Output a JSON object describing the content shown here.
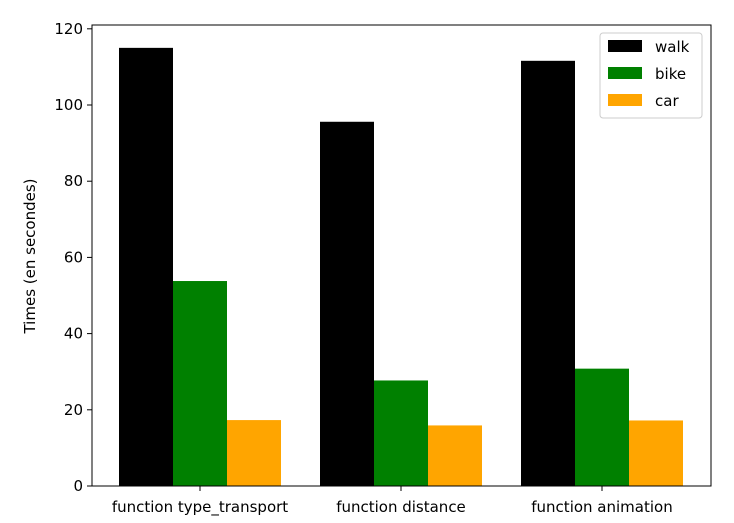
{
  "chart_data": {
    "type": "bar",
    "title": "",
    "xlabel": "",
    "ylabel": "Times (en secondes)",
    "categories": [
      "function type_transport",
      "function distance",
      "function animation"
    ],
    "series": [
      {
        "name": "walk",
        "color": "#000000",
        "values": [
          115,
          95.6,
          111.6
        ]
      },
      {
        "name": "bike",
        "color": "#008000",
        "values": [
          53.8,
          27.7,
          30.8
        ]
      },
      {
        "name": "car",
        "color": "#ffa500",
        "values": [
          17.3,
          15.9,
          17.2
        ]
      }
    ],
    "ylim": [
      0,
      121
    ],
    "yticks": [
      0,
      20,
      40,
      60,
      80,
      100,
      120
    ],
    "grid": false,
    "legend_position": "top-right"
  }
}
